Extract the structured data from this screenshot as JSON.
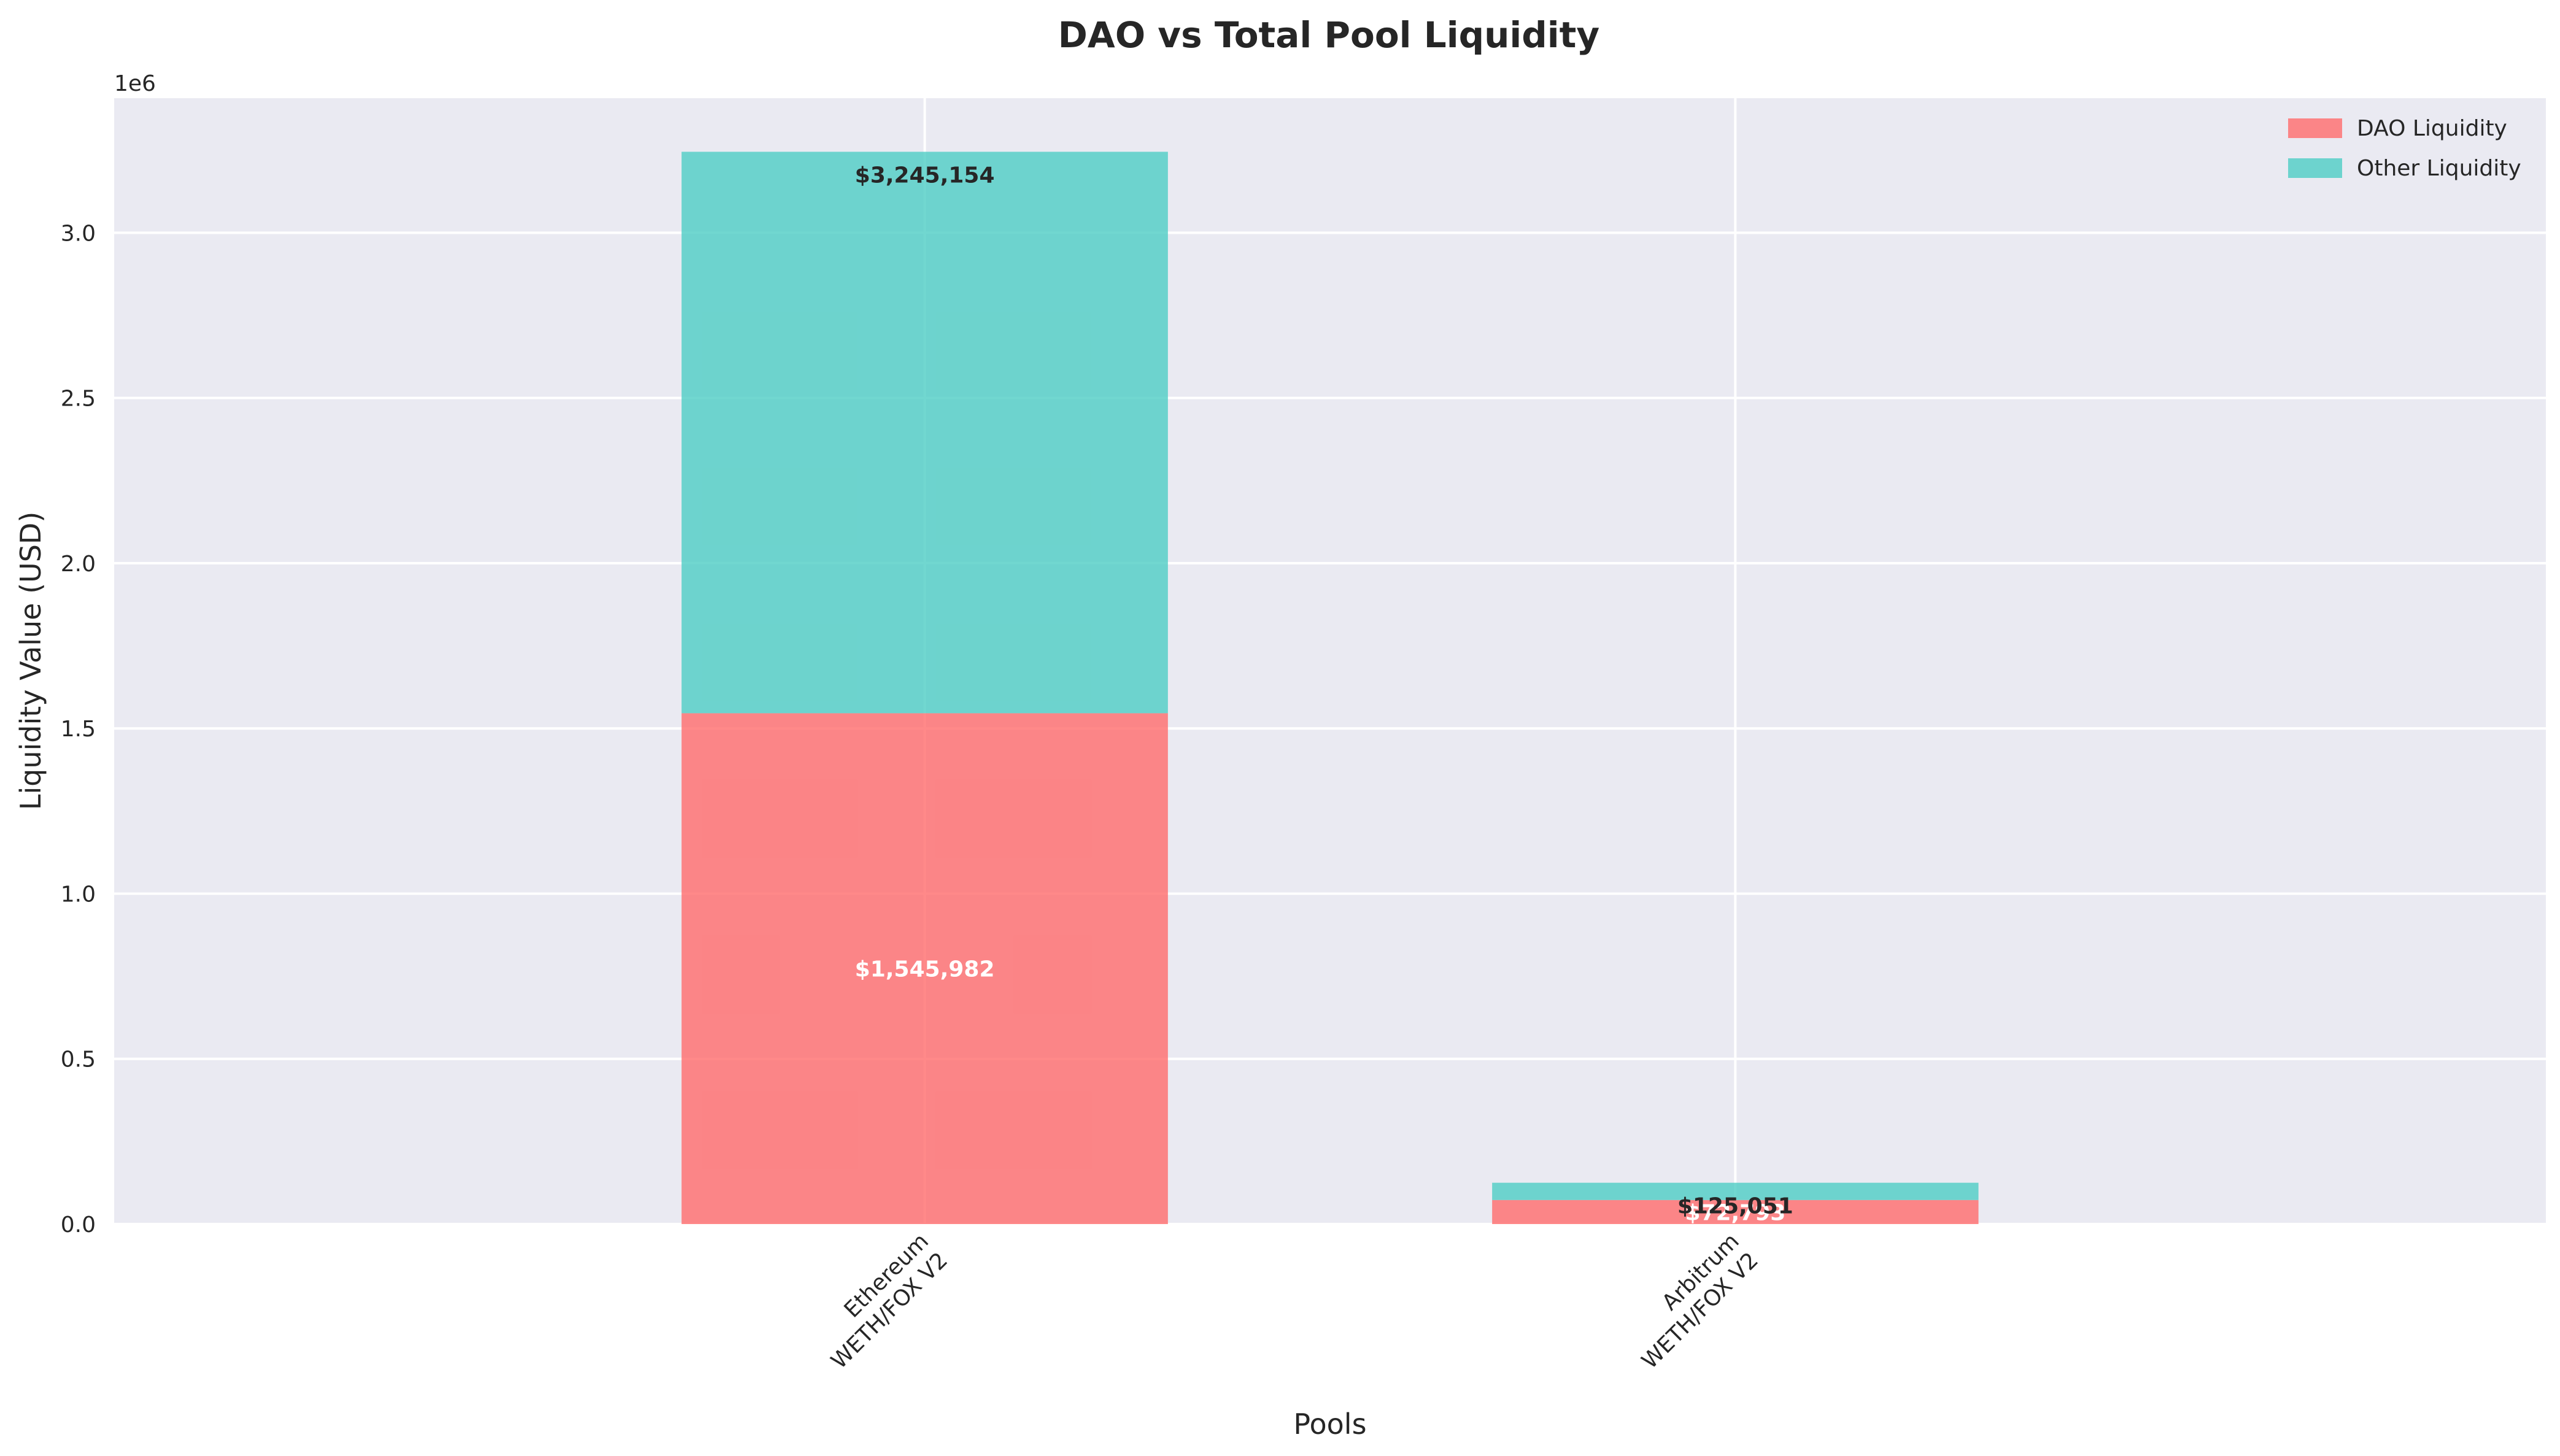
{
  "chart_data": {
    "type": "bar",
    "stacked": true,
    "title": "DAO vs Total Pool Liquidity",
    "xlabel": "Pools",
    "ylabel": "Liquidity Value (USD)",
    "y_offset_label": "1e6",
    "categories": [
      "Ethereum\nWETH/FOX V2",
      "Arbitrum\nWETH/FOX V2"
    ],
    "series": [
      {
        "name": "DAO Liquidity",
        "values": [
          1545982,
          72793
        ],
        "color": "#ff6b6b"
      },
      {
        "name": "Other Liquidity",
        "values": [
          1699172,
          52258
        ],
        "color": "#4ecdc4"
      }
    ],
    "totals": [
      3245154,
      125051
    ],
    "data_labels": {
      "dao": [
        "$1,545,982",
        "$72,793"
      ],
      "total": [
        "$3,245,154",
        "$125,051"
      ]
    },
    "ylim": [
      0,
      3407412
    ],
    "yticks": [
      0,
      500000,
      1000000,
      1500000,
      2000000,
      2500000,
      3000000
    ],
    "ytick_labels": [
      "0.0",
      "0.5",
      "1.0",
      "1.5",
      "2.0",
      "2.5",
      "3.0"
    ],
    "grid": true,
    "legend_position": "top-right",
    "background": "#eaeaf2"
  }
}
